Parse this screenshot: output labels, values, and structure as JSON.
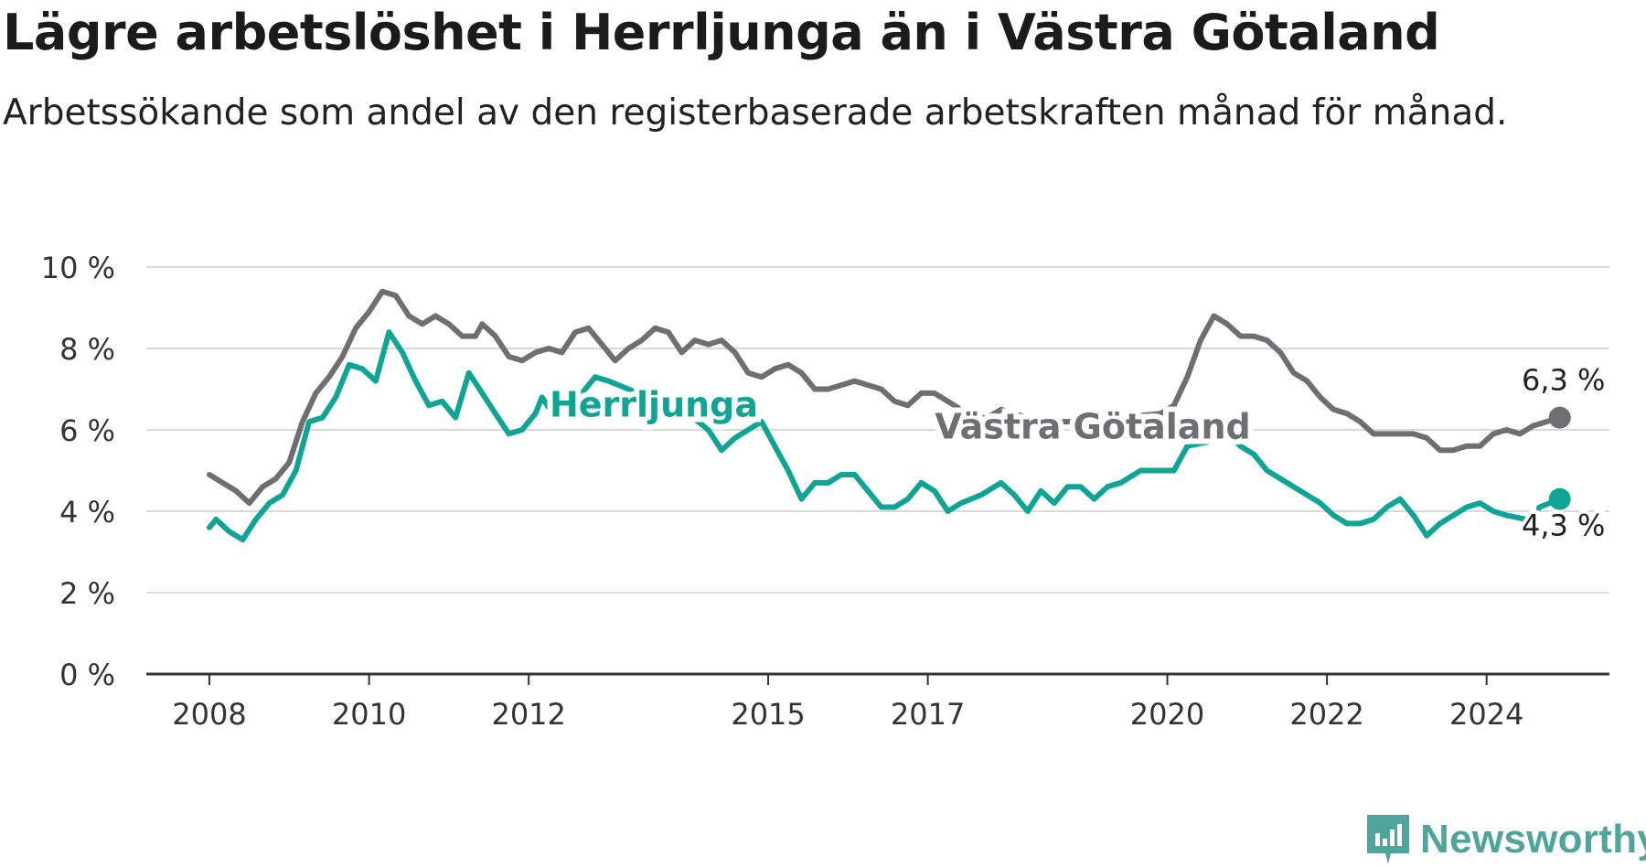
{
  "header": {
    "title": "Lägre arbetslöshet i Herrljunga än i Västra Götaland",
    "subtitle": "Arbetssökande som andel av den registerbaserade arbetskraften månad för månad."
  },
  "brand": {
    "name": "Newsworthy",
    "icon": "newsworthy-logo-icon",
    "color": "#4fa59b"
  },
  "chart_data": {
    "type": "line",
    "title": "Lägre arbetslöshet i Herrljunga än i Västra Götaland",
    "subtitle": "Arbetssökande som andel av den registerbaserade arbetskraften månad för månad.",
    "xlabel": "",
    "ylabel": "",
    "x_range": [
      "2008-01",
      "2025-01"
    ],
    "ylim": [
      0,
      10
    ],
    "y_ticks": [
      0,
      2,
      4,
      6,
      8,
      10
    ],
    "y_tick_labels": [
      "0 %",
      "2 %",
      "4 %",
      "6 %",
      "8 %",
      "10 %"
    ],
    "x_ticks": [
      "2008-01",
      "2010-01",
      "2012-01",
      "2015-01",
      "2017-01",
      "2020-01",
      "2022-01",
      "2024-01"
    ],
    "x_tick_labels": [
      "2008",
      "2010",
      "2012",
      "2015",
      "2017",
      "2020",
      "2022",
      "2024"
    ],
    "grid": true,
    "legend": "inline labels",
    "series": [
      {
        "name": "Västra Götaland",
        "color": "#6e6e73",
        "end_label": "6,3 %",
        "points": [
          [
            "2008-01",
            4.9
          ],
          [
            "2008-03",
            4.7
          ],
          [
            "2008-05",
            4.5
          ],
          [
            "2008-07",
            4.2
          ],
          [
            "2008-09",
            4.6
          ],
          [
            "2008-11",
            4.8
          ],
          [
            "2009-01",
            5.2
          ],
          [
            "2009-03",
            6.2
          ],
          [
            "2009-05",
            6.9
          ],
          [
            "2009-07",
            7.3
          ],
          [
            "2009-09",
            7.8
          ],
          [
            "2009-11",
            8.5
          ],
          [
            "2010-01",
            8.9
          ],
          [
            "2010-03",
            9.4
          ],
          [
            "2010-05",
            9.3
          ],
          [
            "2010-07",
            8.8
          ],
          [
            "2010-09",
            8.6
          ],
          [
            "2010-11",
            8.8
          ],
          [
            "2011-01",
            8.6
          ],
          [
            "2011-03",
            8.3
          ],
          [
            "2011-05",
            8.3
          ],
          [
            "2011-06",
            8.6
          ],
          [
            "2011-08",
            8.3
          ],
          [
            "2011-10",
            7.8
          ],
          [
            "2011-12",
            7.7
          ],
          [
            "2012-02",
            7.9
          ],
          [
            "2012-04",
            8.0
          ],
          [
            "2012-06",
            7.9
          ],
          [
            "2012-08",
            8.4
          ],
          [
            "2012-10",
            8.5
          ],
          [
            "2012-12",
            8.1
          ],
          [
            "2013-02",
            7.7
          ],
          [
            "2013-04",
            8.0
          ],
          [
            "2013-06",
            8.2
          ],
          [
            "2013-08",
            8.5
          ],
          [
            "2013-10",
            8.4
          ],
          [
            "2013-12",
            7.9
          ],
          [
            "2014-02",
            8.2
          ],
          [
            "2014-04",
            8.1
          ],
          [
            "2014-06",
            8.2
          ],
          [
            "2014-08",
            7.9
          ],
          [
            "2014-10",
            7.4
          ],
          [
            "2014-12",
            7.3
          ],
          [
            "2015-02",
            7.5
          ],
          [
            "2015-04",
            7.6
          ],
          [
            "2015-06",
            7.4
          ],
          [
            "2015-08",
            7.0
          ],
          [
            "2015-10",
            7.0
          ],
          [
            "2015-12",
            7.1
          ],
          [
            "2016-02",
            7.2
          ],
          [
            "2016-04",
            7.1
          ],
          [
            "2016-06",
            7.0
          ],
          [
            "2016-08",
            6.7
          ],
          [
            "2016-10",
            6.6
          ],
          [
            "2016-12",
            6.9
          ],
          [
            "2017-02",
            6.9
          ],
          [
            "2017-04",
            6.7
          ],
          [
            "2017-06",
            6.5
          ],
          [
            "2017-08",
            6.3
          ],
          [
            "2017-10",
            6.3
          ],
          [
            "2017-12",
            6.5
          ],
          [
            "2018-02",
            6.4
          ],
          [
            "2018-06",
            6.2
          ],
          [
            "2018-12",
            6.2
          ],
          [
            "2019-06",
            6.3
          ],
          [
            "2019-12",
            6.4
          ],
          [
            "2020-02",
            6.6
          ],
          [
            "2020-04",
            7.3
          ],
          [
            "2020-06",
            8.2
          ],
          [
            "2020-08",
            8.8
          ],
          [
            "2020-10",
            8.6
          ],
          [
            "2020-12",
            8.3
          ],
          [
            "2021-02",
            8.3
          ],
          [
            "2021-04",
            8.2
          ],
          [
            "2021-06",
            7.9
          ],
          [
            "2021-08",
            7.4
          ],
          [
            "2021-10",
            7.2
          ],
          [
            "2021-12",
            6.8
          ],
          [
            "2022-02",
            6.5
          ],
          [
            "2022-04",
            6.4
          ],
          [
            "2022-06",
            6.2
          ],
          [
            "2022-08",
            5.9
          ],
          [
            "2022-10",
            5.9
          ],
          [
            "2022-12",
            5.9
          ],
          [
            "2023-02",
            5.9
          ],
          [
            "2023-04",
            5.8
          ],
          [
            "2023-06",
            5.5
          ],
          [
            "2023-08",
            5.5
          ],
          [
            "2023-10",
            5.6
          ],
          [
            "2023-12",
            5.6
          ],
          [
            "2024-02",
            5.9
          ],
          [
            "2024-04",
            6.0
          ],
          [
            "2024-06",
            5.9
          ],
          [
            "2024-08",
            6.1
          ],
          [
            "2024-10",
            6.2
          ],
          [
            "2024-12",
            6.3
          ]
        ]
      },
      {
        "name": "Herrljunga",
        "color": "#0fa595",
        "end_label": "4,3 %",
        "points": [
          [
            "2008-01",
            3.6
          ],
          [
            "2008-02",
            3.8
          ],
          [
            "2008-04",
            3.5
          ],
          [
            "2008-06",
            3.3
          ],
          [
            "2008-08",
            3.8
          ],
          [
            "2008-10",
            4.2
          ],
          [
            "2008-12",
            4.4
          ],
          [
            "2009-02",
            5.0
          ],
          [
            "2009-04",
            6.2
          ],
          [
            "2009-06",
            6.3
          ],
          [
            "2009-08",
            6.8
          ],
          [
            "2009-10",
            7.6
          ],
          [
            "2009-12",
            7.5
          ],
          [
            "2010-02",
            7.2
          ],
          [
            "2010-04",
            8.4
          ],
          [
            "2010-06",
            7.9
          ],
          [
            "2010-08",
            7.2
          ],
          [
            "2010-10",
            6.6
          ],
          [
            "2010-12",
            6.7
          ],
          [
            "2011-02",
            6.3
          ],
          [
            "2011-04",
            7.4
          ],
          [
            "2011-06",
            6.9
          ],
          [
            "2011-08",
            6.4
          ],
          [
            "2011-10",
            5.9
          ],
          [
            "2011-12",
            6.0
          ],
          [
            "2012-02",
            6.4
          ],
          [
            "2012-03",
            6.8
          ],
          [
            "2012-05",
            6.3
          ],
          [
            "2012-07",
            6.5
          ],
          [
            "2012-09",
            6.9
          ],
          [
            "2012-11",
            7.3
          ],
          [
            "2013-01",
            7.2
          ],
          [
            "2013-04",
            7.0
          ],
          [
            "2013-07",
            6.8
          ],
          [
            "2013-10",
            6.6
          ],
          [
            "2014-01",
            6.4
          ],
          [
            "2014-04",
            6.0
          ],
          [
            "2014-06",
            5.5
          ],
          [
            "2014-08",
            5.8
          ],
          [
            "2014-10",
            6.0
          ],
          [
            "2014-12",
            6.2
          ],
          [
            "2015-02",
            5.6
          ],
          [
            "2015-04",
            5.0
          ],
          [
            "2015-06",
            4.3
          ],
          [
            "2015-08",
            4.7
          ],
          [
            "2015-10",
            4.7
          ],
          [
            "2015-12",
            4.9
          ],
          [
            "2016-02",
            4.9
          ],
          [
            "2016-04",
            4.5
          ],
          [
            "2016-06",
            4.1
          ],
          [
            "2016-08",
            4.1
          ],
          [
            "2016-10",
            4.3
          ],
          [
            "2016-12",
            4.7
          ],
          [
            "2017-02",
            4.5
          ],
          [
            "2017-04",
            4.0
          ],
          [
            "2017-06",
            4.2
          ],
          [
            "2017-09",
            4.4
          ],
          [
            "2017-12",
            4.7
          ],
          [
            "2018-02",
            4.4
          ],
          [
            "2018-04",
            4.0
          ],
          [
            "2018-06",
            4.5
          ],
          [
            "2018-08",
            4.2
          ],
          [
            "2018-10",
            4.6
          ],
          [
            "2018-12",
            4.6
          ],
          [
            "2019-02",
            4.3
          ],
          [
            "2019-04",
            4.6
          ],
          [
            "2019-06",
            4.7
          ],
          [
            "2019-09",
            5.0
          ],
          [
            "2019-12",
            5.0
          ],
          [
            "2020-02",
            5.0
          ],
          [
            "2020-04",
            5.6
          ],
          [
            "2020-07",
            5.7
          ],
          [
            "2020-10",
            5.9
          ],
          [
            "2020-12",
            5.6
          ],
          [
            "2021-02",
            5.4
          ],
          [
            "2021-04",
            5.0
          ],
          [
            "2021-06",
            4.8
          ],
          [
            "2021-08",
            4.6
          ],
          [
            "2021-10",
            4.4
          ],
          [
            "2021-12",
            4.2
          ],
          [
            "2022-02",
            3.9
          ],
          [
            "2022-04",
            3.7
          ],
          [
            "2022-06",
            3.7
          ],
          [
            "2022-08",
            3.8
          ],
          [
            "2022-10",
            4.1
          ],
          [
            "2022-12",
            4.3
          ],
          [
            "2023-02",
            3.9
          ],
          [
            "2023-04",
            3.4
          ],
          [
            "2023-06",
            3.7
          ],
          [
            "2023-08",
            3.9
          ],
          [
            "2023-10",
            4.1
          ],
          [
            "2023-12",
            4.2
          ],
          [
            "2024-02",
            4.0
          ],
          [
            "2024-04",
            3.9
          ],
          [
            "2024-07",
            3.8
          ],
          [
            "2024-09",
            4.1
          ],
          [
            "2024-12",
            4.3
          ]
        ]
      }
    ]
  }
}
